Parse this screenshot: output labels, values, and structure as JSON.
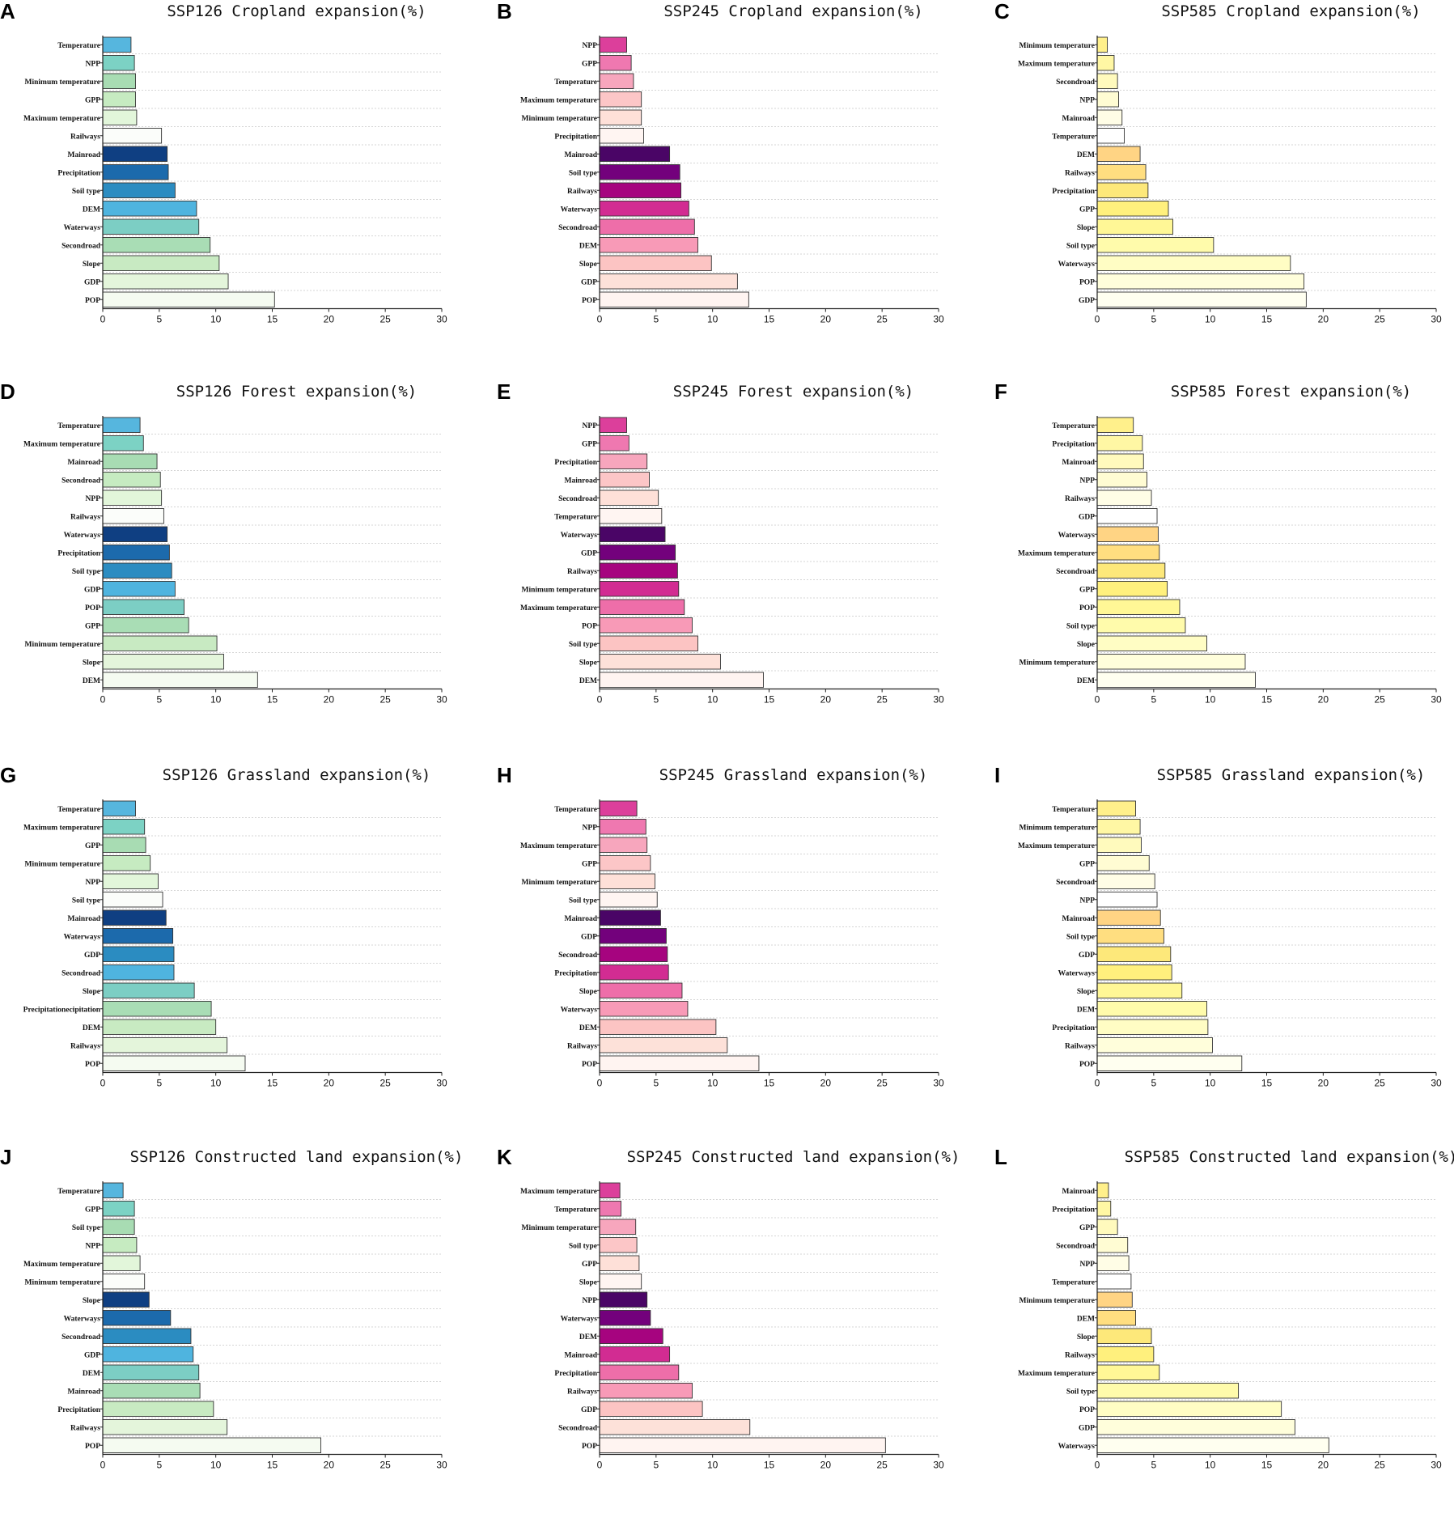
{
  "chart_data": [
    {
      "panel": "A",
      "type": "bar",
      "orientation": "horizontal",
      "title": "SSP126 Cropland expansion(%)",
      "palette": "blue",
      "xlim": [
        0,
        30
      ],
      "ticks": [
        0,
        5,
        10,
        15,
        20,
        25,
        30
      ],
      "categories": [
        "Temperature",
        "NPP",
        "Minimum temperature",
        "GPP",
        "Maximum temperature",
        "Railways",
        "Mainroad",
        "Precipitation",
        "Soil type",
        "DEM",
        "Waterways",
        "Secondroad",
        "Slope",
        "GDP",
        "POP"
      ],
      "values": [
        2.5,
        2.8,
        2.9,
        2.9,
        3.0,
        5.2,
        5.7,
        5.8,
        6.4,
        8.3,
        8.5,
        9.5,
        10.3,
        11.1,
        15.2
      ]
    },
    {
      "panel": "B",
      "type": "bar",
      "orientation": "horizontal",
      "title": "SSP245 Cropland expansion(%)",
      "palette": "pink",
      "xlim": [
        0,
        30
      ],
      "ticks": [
        0,
        5,
        10,
        15,
        20,
        25,
        30
      ],
      "categories": [
        "NPP",
        "GPP",
        "Temperature",
        "Maximum temperature",
        "Minimum temperature",
        "Precipitation",
        "Mainroad",
        "Soil type",
        "Railways",
        "Waterways",
        "Secondroad",
        "DEM",
        "Slope",
        "GDP",
        "POP"
      ],
      "values": [
        2.4,
        2.8,
        3.0,
        3.7,
        3.7,
        3.9,
        6.2,
        7.1,
        7.2,
        7.9,
        8.4,
        8.7,
        9.9,
        12.2,
        13.2
      ]
    },
    {
      "panel": "C",
      "type": "bar",
      "orientation": "horizontal",
      "title": "SSP585 Cropland expansion(%)",
      "palette": "yellow",
      "xlim": [
        0,
        30
      ],
      "ticks": [
        0,
        5,
        10,
        15,
        20,
        25,
        30
      ],
      "categories": [
        "Minimum temperature",
        "Maximum temperature",
        "Secondroad",
        "NPP",
        "Mainroad",
        "Temperature",
        "DEM",
        "Railways",
        "Precipitation",
        "GPP",
        "Slope",
        "Soil type",
        "Waterways",
        "POP",
        "GDP"
      ],
      "values": [
        0.9,
        1.5,
        1.8,
        1.9,
        2.2,
        2.4,
        3.8,
        4.3,
        4.5,
        6.3,
        6.7,
        10.3,
        17.1,
        18.3,
        18.5
      ]
    },
    {
      "panel": "D",
      "type": "bar",
      "orientation": "horizontal",
      "title": "SSP126 Forest expansion(%)",
      "palette": "blue",
      "xlim": [
        0,
        30
      ],
      "ticks": [
        0,
        5,
        10,
        15,
        20,
        25,
        30
      ],
      "categories": [
        "Temperature",
        "Maximum temperature",
        "Mainroad",
        "Secondroad",
        "NPP",
        "Railways",
        "Waterways",
        "Precipitation",
        "Soil type",
        "GDP",
        "POP",
        "GPP",
        "Minimum temperature",
        "Slope",
        "DEM"
      ],
      "values": [
        3.3,
        3.6,
        4.8,
        5.1,
        5.2,
        5.4,
        5.7,
        5.9,
        6.1,
        6.4,
        7.2,
        7.6,
        10.1,
        10.7,
        13.7
      ]
    },
    {
      "panel": "E",
      "type": "bar",
      "orientation": "horizontal",
      "title": "SSP245 Forest expansion(%)",
      "palette": "pink",
      "xlim": [
        0,
        30
      ],
      "ticks": [
        0,
        5,
        10,
        15,
        20,
        25,
        30
      ],
      "categories": [
        "NPP",
        "GPP",
        "Precipitation",
        "Mainroad",
        "Secondroad",
        "Temperature",
        "Waterways",
        "GDP",
        "Railways",
        "Minimum temperature",
        "Maximum temperature",
        "POP",
        "Soil type",
        "Slope",
        "DEM"
      ],
      "values": [
        2.4,
        2.6,
        4.2,
        4.4,
        5.2,
        5.5,
        5.8,
        6.7,
        6.9,
        7.0,
        7.5,
        8.2,
        8.7,
        10.7,
        14.5
      ]
    },
    {
      "panel": "F",
      "type": "bar",
      "orientation": "horizontal",
      "title": "SSP585 Forest expansion(%)",
      "palette": "yellow",
      "xlim": [
        0,
        30
      ],
      "ticks": [
        0,
        5,
        10,
        15,
        20,
        25,
        30
      ],
      "categories": [
        "Temperature",
        "Precipitation",
        "Mainroad",
        "NPP",
        "Railways",
        "GDP",
        "Waterways",
        "Maximum temperature",
        "Secondroad",
        "GPP",
        "POP",
        "Soil type",
        "Slope",
        "Minimum temperature",
        "DEM"
      ],
      "values": [
        3.2,
        4.0,
        4.1,
        4.4,
        4.8,
        5.3,
        5.4,
        5.5,
        6.0,
        6.2,
        7.3,
        7.8,
        9.7,
        13.1,
        14.0
      ]
    },
    {
      "panel": "G",
      "type": "bar",
      "orientation": "horizontal",
      "title": "SSP126 Grassland expansion(%)",
      "palette": "blue",
      "xlim": [
        0,
        30
      ],
      "ticks": [
        0,
        5,
        10,
        15,
        20,
        25,
        30
      ],
      "categories": [
        "Temperature",
        "Maximum temperature",
        "GPP",
        "Minimum temperature",
        "NPP",
        "Soil type",
        "Mainroad",
        "Waterways",
        "GDP",
        "Secondroad",
        "Slope",
        "Precipitationecipitation",
        "DEM",
        "Railways",
        "POP"
      ],
      "values": [
        2.9,
        3.7,
        3.8,
        4.2,
        4.9,
        5.3,
        5.6,
        6.2,
        6.3,
        6.3,
        8.1,
        9.6,
        10.0,
        11.0,
        12.6
      ]
    },
    {
      "panel": "H",
      "type": "bar",
      "orientation": "horizontal",
      "title": "SSP245 Grassland expansion(%)",
      "palette": "pink",
      "xlim": [
        0,
        30
      ],
      "ticks": [
        0,
        5,
        10,
        15,
        20,
        25,
        30
      ],
      "categories": [
        "Temperature",
        "NPP",
        "Maximum temperature",
        "GPP",
        "Minimum temperature",
        "Soil type",
        "Mainroad",
        "GDP",
        "Secondroad",
        "Precipitation",
        "Slope",
        "Waterways",
        "DEM",
        "Railways",
        "POP"
      ],
      "values": [
        3.3,
        4.1,
        4.2,
        4.5,
        4.9,
        5.1,
        5.4,
        5.9,
        6.0,
        6.1,
        7.3,
        7.8,
        10.3,
        11.3,
        14.1
      ]
    },
    {
      "panel": "I",
      "type": "bar",
      "orientation": "horizontal",
      "title": "SSP585 Grassland expansion(%)",
      "palette": "yellow",
      "xlim": [
        0,
        30
      ],
      "ticks": [
        0,
        5,
        10,
        15,
        20,
        25,
        30
      ],
      "categories": [
        "Temperature",
        "Minimum temperature",
        "Maximum temperature",
        "GPP",
        "Secondroad",
        "NPP",
        "Mainroad",
        "Soil type",
        "GDP",
        "Waterways",
        "Slope",
        "DEM",
        "Precipitation",
        "Railways",
        "POP"
      ],
      "values": [
        3.4,
        3.8,
        3.9,
        4.6,
        5.1,
        5.3,
        5.6,
        5.9,
        6.5,
        6.6,
        7.5,
        9.7,
        9.8,
        10.2,
        12.8
      ]
    },
    {
      "panel": "J",
      "type": "bar",
      "orientation": "horizontal",
      "title": "SSP126 Constructed land expansion(%)",
      "palette": "blue",
      "xlim": [
        0,
        30
      ],
      "ticks": [
        0,
        5,
        10,
        15,
        20,
        25,
        30
      ],
      "categories": [
        "Temperature",
        "GPP",
        "Soil type",
        "NPP",
        "Maximum temperature",
        "Minimum temperature",
        "Slope",
        "Waterways",
        "Secondroad",
        "GDP",
        "DEM",
        "Mainroad",
        "Precipitation",
        "Railways",
        "POP"
      ],
      "values": [
        1.8,
        2.8,
        2.8,
        3.0,
        3.3,
        3.7,
        4.1,
        6.0,
        7.8,
        8.0,
        8.5,
        8.6,
        9.8,
        11.0,
        19.3
      ]
    },
    {
      "panel": "K",
      "type": "bar",
      "orientation": "horizontal",
      "title": "SSP245 Constructed land expansion(%)",
      "palette": "pink",
      "xlim": [
        0,
        30
      ],
      "ticks": [
        0,
        5,
        10,
        15,
        20,
        25,
        30
      ],
      "categories": [
        "Maximum temperature",
        "Temperature",
        "Minimum temperature",
        "Soil type",
        "GPP",
        "Slope",
        "NPP",
        "Waterways",
        "DEM",
        "Mainroad",
        "Precipitation",
        "Railways",
        "GDP",
        "Secondroad",
        "POP"
      ],
      "values": [
        1.8,
        1.9,
        3.2,
        3.3,
        3.5,
        3.7,
        4.2,
        4.5,
        5.6,
        6.2,
        7.0,
        8.2,
        9.1,
        13.3,
        25.3
      ]
    },
    {
      "panel": "L",
      "type": "bar",
      "orientation": "horizontal",
      "title": "SSP585 Constructed land expansion(%)",
      "palette": "yellow",
      "xlim": [
        0,
        30
      ],
      "ticks": [
        0,
        5,
        10,
        15,
        20,
        25,
        30
      ],
      "categories": [
        "Mainroad",
        "Precipitation",
        "GPP",
        "Secondroad",
        "NPP",
        "Temperature",
        "Minimum temperature",
        "DEM",
        "Slope",
        "Railways",
        "Maximum temperature",
        "Soil type",
        "POP",
        "GDP",
        "Waterways"
      ],
      "values": [
        1.0,
        1.2,
        1.8,
        2.7,
        2.8,
        3.0,
        3.1,
        3.4,
        4.8,
        5.0,
        5.5,
        12.5,
        16.3,
        17.5,
        20.5
      ]
    }
  ],
  "palettes": {
    "blue": [
      "#56b6de",
      "#7cd2c4",
      "#a8dcb3",
      "#c6ebc1",
      "#e2f6da",
      "#fbfdfa",
      "#0f3f82",
      "#1c6aac",
      "#2b8cc1",
      "#4fb4df",
      "#7ccec4",
      "#a9ddb5",
      "#c8eac2",
      "#e4f5db",
      "#f5fbf1"
    ],
    "pink": [
      "#dc3f9b",
      "#ef78b0",
      "#f7a6bd",
      "#fcc6c7",
      "#fee0d8",
      "#fff5f2",
      "#4a0566",
      "#73017c",
      "#a6047f",
      "#d22c92",
      "#ee6ea9",
      "#f89ab7",
      "#fcc4c3",
      "#fde1d9",
      "#fff4f1"
    ],
    "yellow": [
      "#fff08b",
      "#fff7a4",
      "#fffabd",
      "#fffcd3",
      "#fffde6",
      "#ffffff",
      "#ffd484",
      "#ffde80",
      "#fde87a",
      "#fff07d",
      "#fff796",
      "#fffbab",
      "#fffdc4",
      "#fffedb",
      "#fffff0"
    ]
  }
}
